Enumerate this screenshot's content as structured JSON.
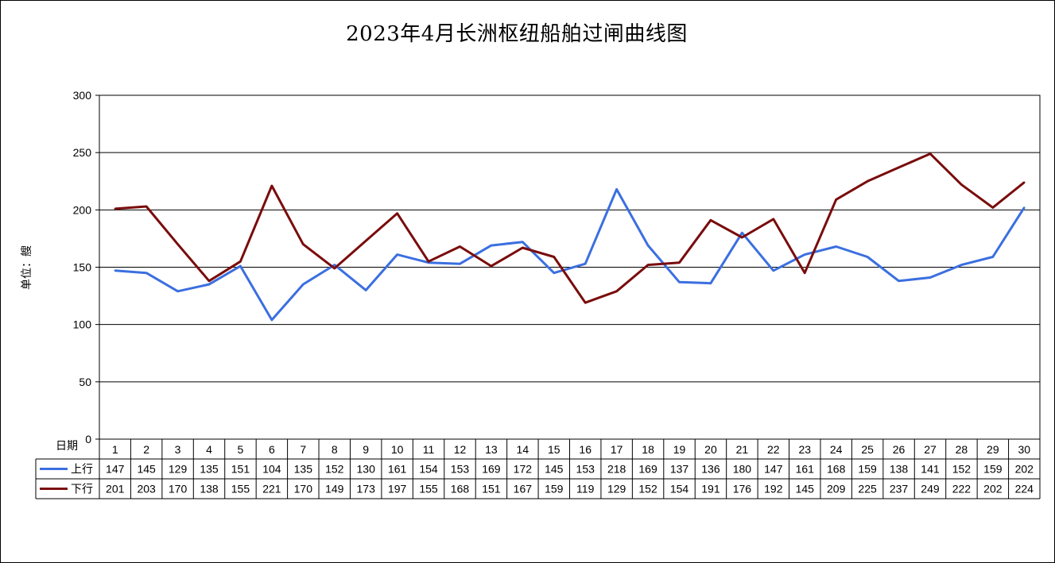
{
  "chart_data": {
    "type": "line",
    "title": "2023年4月长洲枢纽船舶过闸曲线图",
    "ylabel": "单位：艘",
    "table_header": "日期",
    "ylim": [
      0,
      300
    ],
    "yticks": [
      0,
      50,
      100,
      150,
      200,
      250,
      300
    ],
    "grid": true,
    "categories": [
      "1",
      "2",
      "3",
      "4",
      "5",
      "6",
      "7",
      "8",
      "9",
      "10",
      "11",
      "12",
      "13",
      "14",
      "15",
      "16",
      "17",
      "18",
      "19",
      "20",
      "21",
      "22",
      "23",
      "24",
      "25",
      "26",
      "27",
      "28",
      "29",
      "30"
    ],
    "series": [
      {
        "name": "上行",
        "color": "#3b6fe0",
        "values": [
          147,
          145,
          129,
          135,
          151,
          104,
          135,
          152,
          130,
          161,
          154,
          153,
          169,
          172,
          145,
          153,
          218,
          169,
          137,
          136,
          180,
          147,
          161,
          168,
          159,
          138,
          141,
          152,
          159,
          202
        ]
      },
      {
        "name": "下行",
        "color": "#7a0c0c",
        "values": [
          201,
          203,
          170,
          138,
          155,
          221,
          170,
          149,
          173,
          197,
          155,
          168,
          151,
          167,
          159,
          119,
          129,
          152,
          154,
          191,
          176,
          192,
          145,
          209,
          225,
          237,
          249,
          222,
          202,
          224
        ]
      }
    ]
  }
}
